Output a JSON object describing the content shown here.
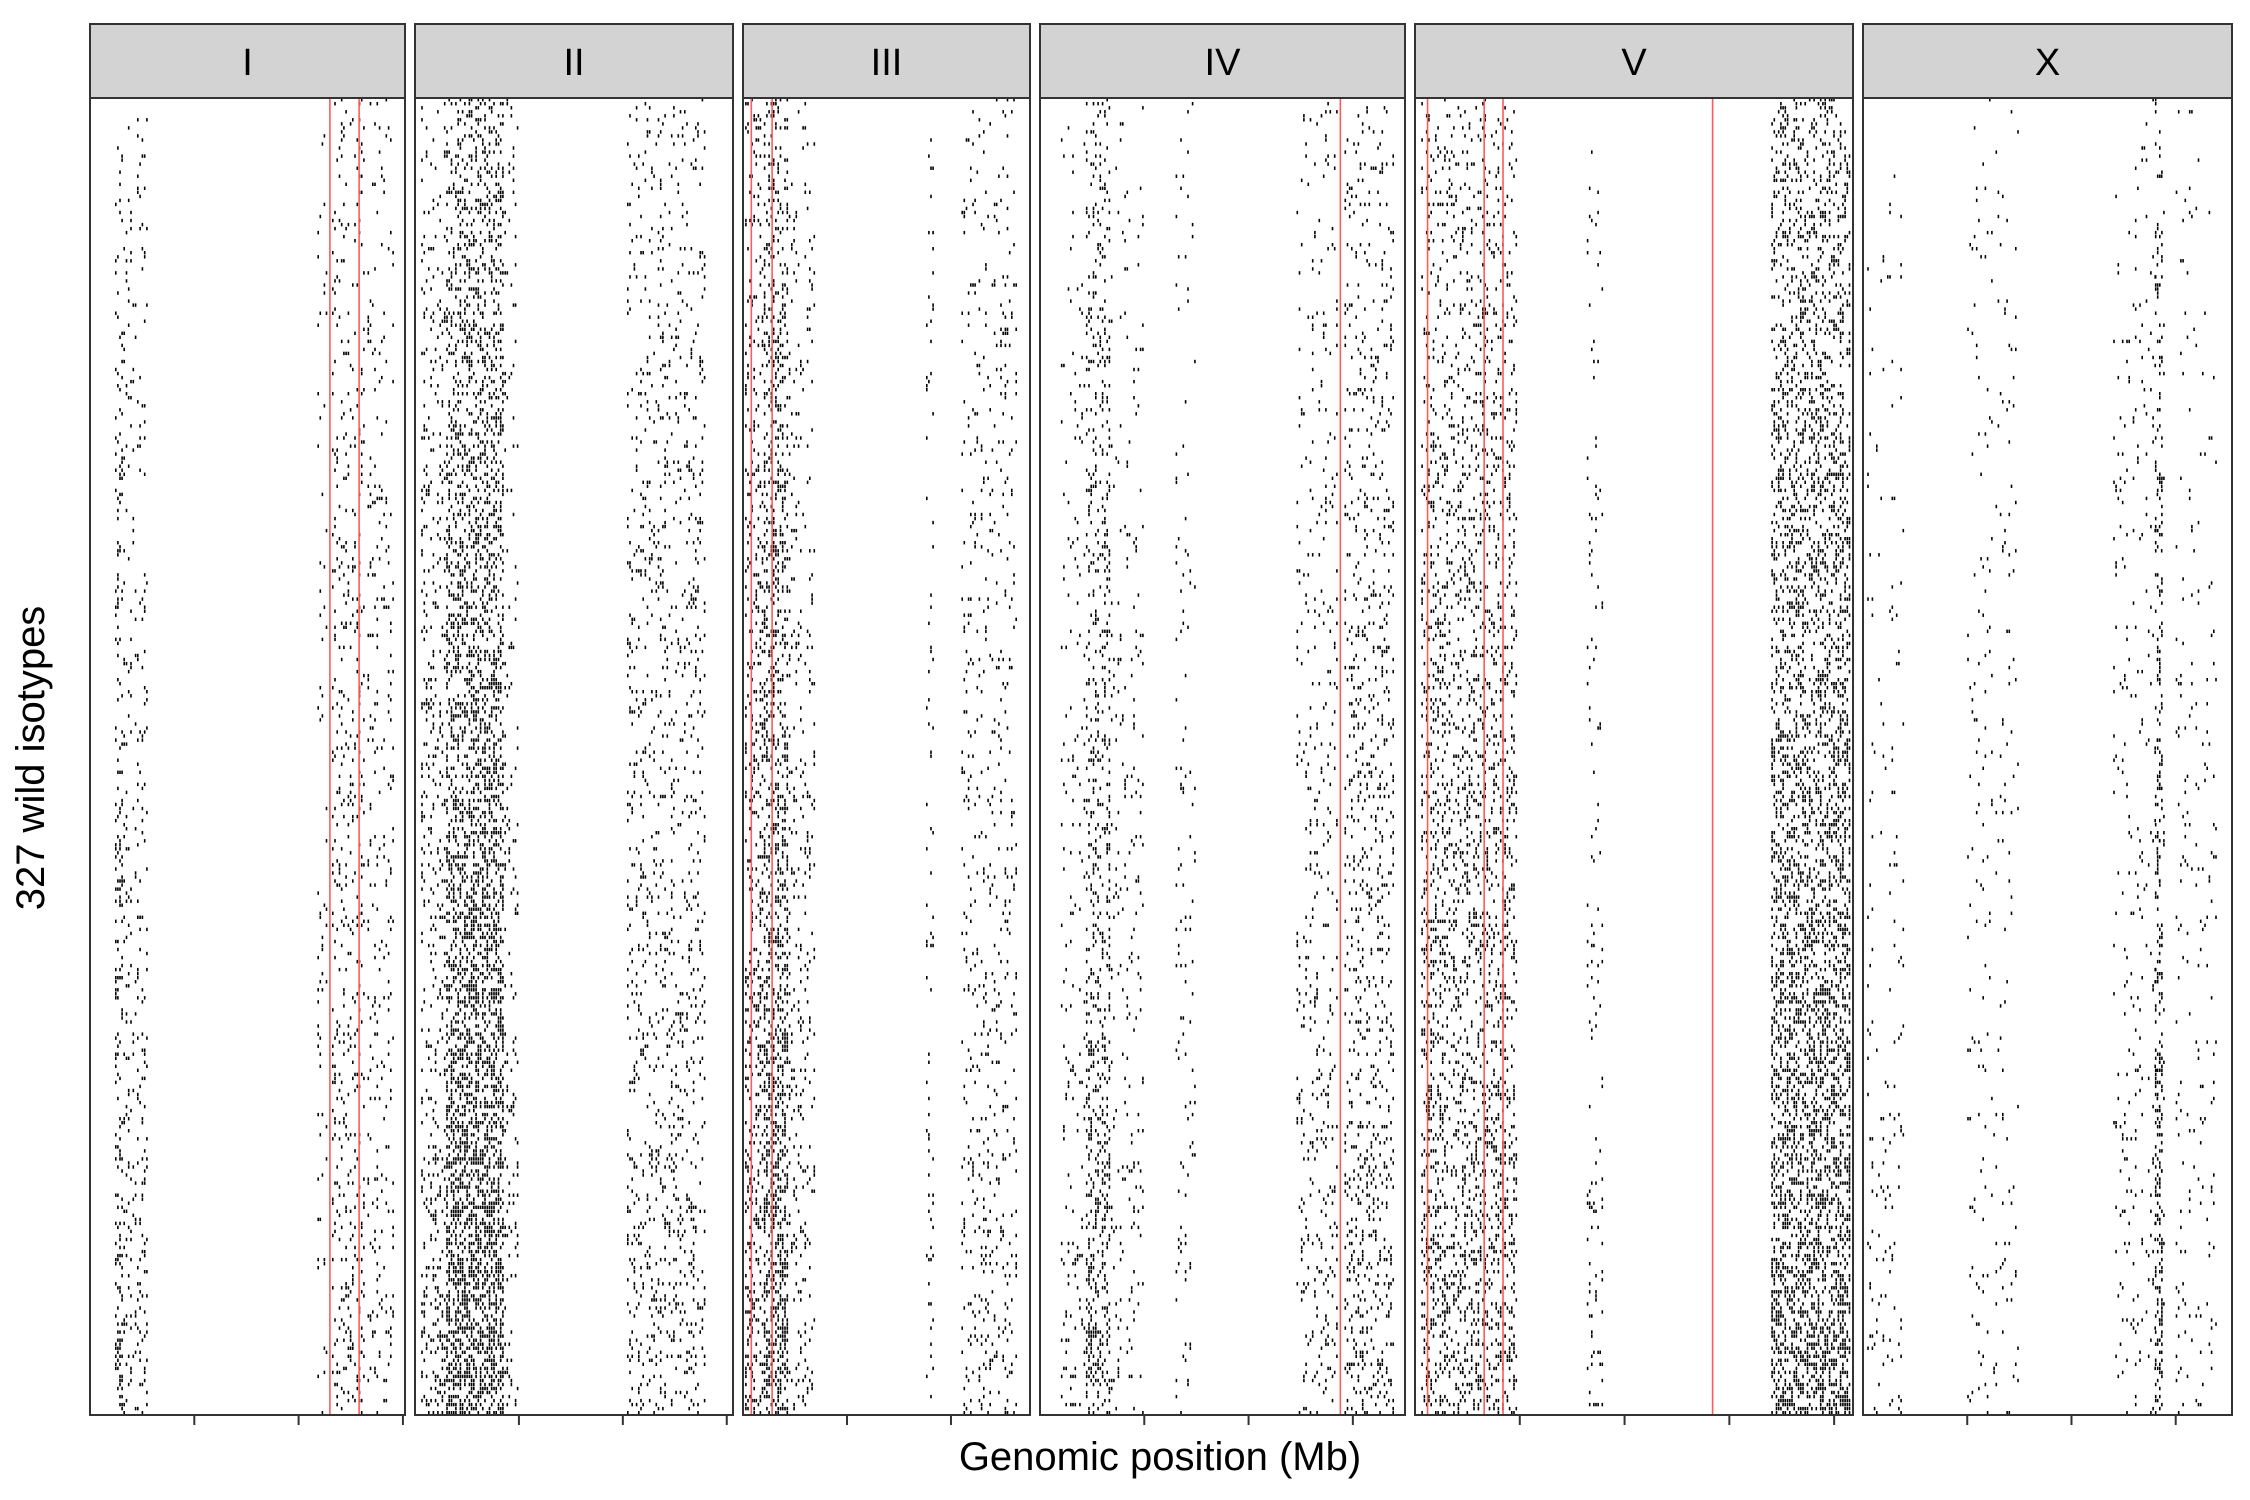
{
  "chart_data": {
    "type": "heatmap",
    "subtype": "faceted genome-wide haplotype / variant raster",
    "title": "",
    "xlabel": "Genomic position (Mb)",
    "ylabel": "327 wild isotypes",
    "n_rows": 327,
    "facet_strip_color": "#d3d3d3",
    "mark_color": "#000000",
    "highlight_line_color": "#ff5a5a",
    "panels": [
      {
        "label": "I",
        "x_range_mb": [
          0,
          15.1
        ],
        "highlight_mb": [
          11.5,
          12.9
        ],
        "tick_mb": [
          5,
          10,
          15
        ],
        "bands": [
          {
            "start": 1.2,
            "end": 1.6,
            "density": 0.3
          },
          {
            "start": 1.6,
            "end": 2.8,
            "density": 0.15
          },
          {
            "start": 10.9,
            "end": 11.4,
            "density": 0.08
          },
          {
            "start": 11.6,
            "end": 13.2,
            "density": 0.18
          },
          {
            "start": 13.3,
            "end": 14.6,
            "density": 0.12
          }
        ]
      },
      {
        "label": "II",
        "x_range_mb": [
          0,
          15.3
        ],
        "highlight_mb": [],
        "tick_mb": [
          5,
          10,
          15
        ],
        "bands": [
          {
            "start": 0.3,
            "end": 1.5,
            "density": 0.25
          },
          {
            "start": 1.5,
            "end": 4.3,
            "density": 0.65
          },
          {
            "start": 4.3,
            "end": 5.0,
            "density": 0.12
          },
          {
            "start": 10.2,
            "end": 14.0,
            "density": 0.18
          }
        ]
      },
      {
        "label": "III",
        "x_range_mb": [
          0,
          13.8
        ],
        "highlight_mb": [
          0.4,
          1.4
        ],
        "tick_mb": [
          5,
          10
        ],
        "bands": [
          {
            "start": 0.1,
            "end": 1.0,
            "density": 0.3
          },
          {
            "start": 1.0,
            "end": 2.2,
            "density": 0.55
          },
          {
            "start": 2.2,
            "end": 3.5,
            "density": 0.15
          },
          {
            "start": 8.8,
            "end": 9.2,
            "density": 0.1
          },
          {
            "start": 10.5,
            "end": 13.2,
            "density": 0.12
          }
        ]
      },
      {
        "label": "IV",
        "x_range_mb": [
          0,
          17.5
        ],
        "highlight_mb": [
          14.4
        ],
        "tick_mb": [
          5,
          10,
          15
        ],
        "bands": [
          {
            "start": 1.0,
            "end": 2.2,
            "density": 0.08
          },
          {
            "start": 2.2,
            "end": 3.4,
            "density": 0.35
          },
          {
            "start": 3.4,
            "end": 5.0,
            "density": 0.08
          },
          {
            "start": 6.5,
            "end": 7.5,
            "density": 0.06
          },
          {
            "start": 12.3,
            "end": 14.3,
            "density": 0.12
          },
          {
            "start": 14.6,
            "end": 17.0,
            "density": 0.2
          }
        ]
      },
      {
        "label": "V",
        "x_range_mb": [
          0,
          20.9
        ],
        "highlight_mb": [
          0.6,
          3.3,
          4.2,
          14.2
        ],
        "tick_mb": [
          5,
          10,
          15,
          20
        ],
        "bands": [
          {
            "start": 0.3,
            "end": 1.5,
            "density": 0.35
          },
          {
            "start": 1.5,
            "end": 4.9,
            "density": 0.3
          },
          {
            "start": 8.2,
            "end": 9.0,
            "density": 0.08
          },
          {
            "start": 17.0,
            "end": 20.8,
            "density": 0.55
          }
        ]
      },
      {
        "label": "X",
        "x_range_mb": [
          0,
          17.7
        ],
        "highlight_mb": [],
        "tick_mb": [
          5,
          10,
          15
        ],
        "bands": [
          {
            "start": 0.2,
            "end": 2.0,
            "density": 0.05
          },
          {
            "start": 5.0,
            "end": 7.5,
            "density": 0.05
          },
          {
            "start": 12.0,
            "end": 14.5,
            "density": 0.06
          },
          {
            "start": 14.0,
            "end": 14.4,
            "density": 0.4
          },
          {
            "start": 15.0,
            "end": 17.0,
            "density": 0.05
          }
        ]
      }
    ]
  }
}
